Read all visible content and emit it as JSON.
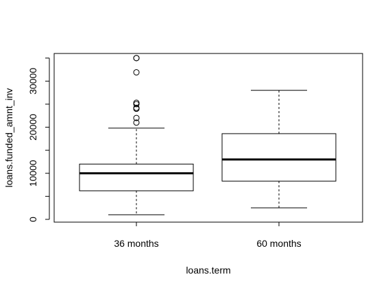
{
  "chart_data": {
    "type": "boxplot",
    "title": "",
    "xlabel": "loans.term",
    "ylabel": "loans.funded_amnt_inv",
    "ylim": [
      -600,
      36000
    ],
    "y_ticks": [
      0,
      10000,
      20000,
      30000
    ],
    "y_tick_labels": [
      "0",
      "10000",
      "20000",
      "30000"
    ],
    "grid": false,
    "categories": [
      "36 months",
      "60 months"
    ],
    "boxes": [
      {
        "name": "36 months",
        "whisker_low": 1000,
        "q1": 6200,
        "median": 10000,
        "q3": 12000,
        "whisker_high": 19800,
        "outliers": [
          21000,
          22000,
          24000,
          24200,
          25000,
          25300,
          31900,
          35000,
          35000
        ]
      },
      {
        "name": "60 months",
        "whisker_low": 2500,
        "q1": 8300,
        "median": 13000,
        "q3": 18600,
        "whisker_high": 28000,
        "outliers": []
      }
    ]
  }
}
